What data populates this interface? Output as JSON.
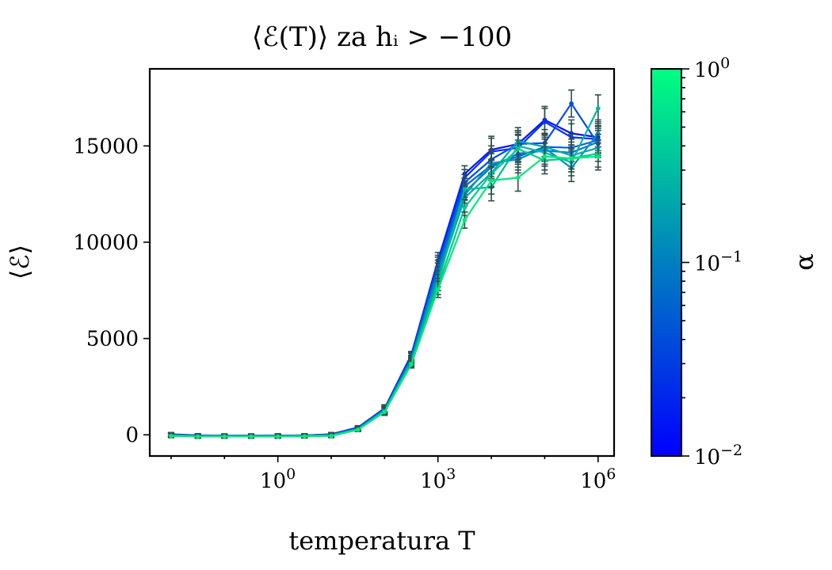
{
  "chart_data": {
    "type": "line",
    "title": "⟨ℰ(T)⟩ za hᵢ > −100",
    "xlabel": "temperatura T",
    "ylabel": "⟨ℰ⟩",
    "xscale": "log",
    "xlim_log10": [
      -2.4,
      6.3
    ],
    "ylim": [
      -1100,
      19000
    ],
    "xticks": [
      {
        "base": "10",
        "exp": "0",
        "log10": 0
      },
      {
        "base": "10",
        "exp": "3",
        "log10": 3
      },
      {
        "base": "10",
        "exp": "6",
        "log10": 6
      }
    ],
    "yticks": [
      {
        "label": "0",
        "value": 0
      },
      {
        "label": "5000",
        "value": 5000
      },
      {
        "label": "10000",
        "value": 10000
      },
      {
        "label": "15000",
        "value": 15000
      }
    ],
    "x_log10": [
      -2.0,
      -1.5,
      -1.0,
      -0.5,
      0.0,
      0.5,
      1.0,
      1.5,
      2.0,
      2.5,
      3.0,
      3.5,
      4.0,
      4.5,
      5.0,
      5.5,
      6.0
    ],
    "error_bar_color": "#2f4f4f",
    "series": [
      {
        "alpha": 0.01,
        "color": "#0014ff",
        "values": [
          30,
          -30,
          -40,
          -40,
          -40,
          -30,
          30,
          380,
          1380,
          4150,
          9050,
          13550,
          14800,
          15100,
          16350,
          15650,
          15450
        ]
      },
      {
        "alpha": 0.02,
        "color": "#0032f2",
        "values": [
          20,
          -40,
          -50,
          -50,
          -40,
          -30,
          20,
          360,
          1350,
          4100,
          8900,
          13350,
          14700,
          14900,
          16250,
          15450,
          15350
        ]
      },
      {
        "alpha": 0.03,
        "color": "#004ce6",
        "values": [
          10,
          -50,
          -50,
          -50,
          -50,
          -40,
          10,
          340,
          1330,
          4050,
          8800,
          13100,
          14300,
          15100,
          15150,
          17200,
          15100
        ]
      },
      {
        "alpha": 0.05,
        "color": "#0064d8",
        "values": [
          0,
          -60,
          -60,
          -60,
          -60,
          -50,
          0,
          320,
          1310,
          3950,
          8650,
          12900,
          14000,
          14450,
          14950,
          14900,
          15300
        ]
      },
      {
        "alpha": 0.08,
        "color": "#007bcb",
        "values": [
          -10,
          -60,
          -60,
          -60,
          -60,
          -50,
          -10,
          310,
          1290,
          3900,
          8500,
          12600,
          13900,
          14600,
          14750,
          14650,
          15200
        ]
      },
      {
        "alpha": 0.13,
        "color": "#0092bc",
        "values": [
          -20,
          -70,
          -70,
          -70,
          -70,
          -60,
          -20,
          300,
          1270,
          3850,
          8300,
          12450,
          14100,
          14300,
          14900,
          13850,
          15650
        ]
      },
      {
        "alpha": 0.2,
        "color": "#00a6ad",
        "values": [
          -30,
          -70,
          -70,
          -70,
          -70,
          -60,
          -30,
          290,
          1250,
          3800,
          8100,
          12300,
          13600,
          15250,
          14950,
          14500,
          14900
        ]
      },
      {
        "alpha": 0.33,
        "color": "#00b89e",
        "values": [
          -40,
          -80,
          -80,
          -80,
          -80,
          -70,
          -40,
          280,
          1230,
          3750,
          7900,
          12750,
          12850,
          15000,
          14650,
          14150,
          16950
        ]
      },
      {
        "alpha": 0.55,
        "color": "#00cc8c",
        "values": [
          -50,
          -80,
          -80,
          -80,
          -80,
          -70,
          -50,
          270,
          1210,
          3700,
          7700,
          11800,
          13550,
          14850,
          14250,
          14350,
          14600
        ]
      },
      {
        "alpha": 1.0,
        "color": "#00e87a",
        "values": [
          -60,
          -90,
          -90,
          -90,
          -90,
          -80,
          -60,
          260,
          1190,
          3650,
          7550,
          11150,
          13200,
          13350,
          14450,
          14350,
          14450
        ]
      }
    ],
    "colorbar": {
      "label": "α",
      "scale": "log",
      "min_color": "#0000ff",
      "max_color": "#00ff80",
      "ticks": [
        {
          "base": "10",
          "exp": "0",
          "log10": 0
        },
        {
          "base": "10",
          "exp": "−1",
          "log10": -1
        },
        {
          "base": "10",
          "exp": "−2",
          "log10": -2
        }
      ]
    }
  }
}
